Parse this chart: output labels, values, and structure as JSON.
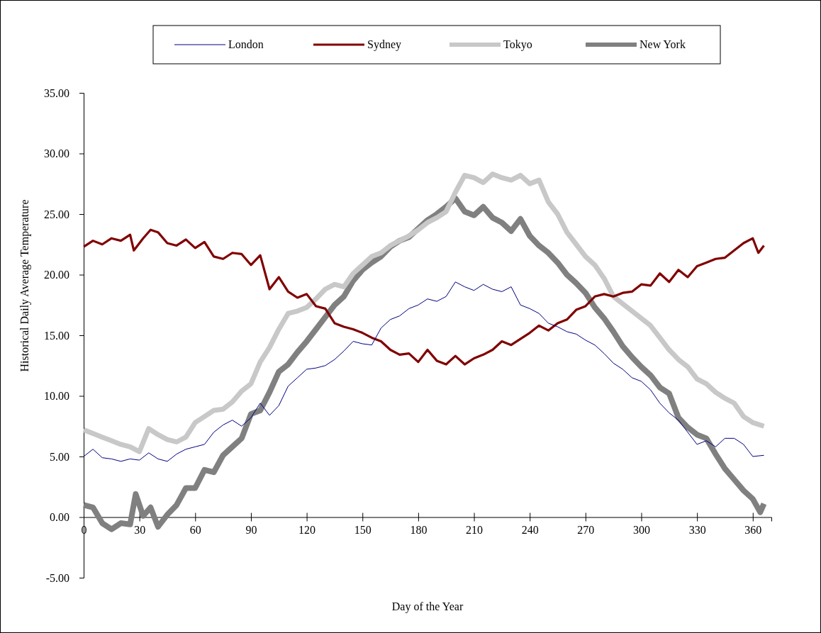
{
  "chart_data": {
    "type": "line",
    "xlabel": "Day of the Year",
    "ylabel": "Historical Daily Average Temperature",
    "xlim": [
      0,
      370
    ],
    "ylim": [
      -5,
      35
    ],
    "xticks": [
      0,
      30,
      60,
      90,
      120,
      150,
      180,
      210,
      240,
      270,
      300,
      330,
      360
    ],
    "yticks": [
      {
        "value": -5,
        "label": "-5.00"
      },
      {
        "value": 0,
        "label": "0.00"
      },
      {
        "value": 5,
        "label": "5.00"
      },
      {
        "value": 10,
        "label": "10.00"
      },
      {
        "value": 15,
        "label": "15.00"
      },
      {
        "value": 20,
        "label": "20.00"
      },
      {
        "value": 25,
        "label": "25.00"
      },
      {
        "value": 30,
        "label": "30.00"
      },
      {
        "value": 35,
        "label": "35.00"
      }
    ],
    "grid": false,
    "legend": "top",
    "marker": "none",
    "line_style": "solid",
    "series": [
      {
        "name": "London",
        "color": "#000080",
        "x": [
          0,
          5,
          10,
          15,
          20,
          25,
          30,
          35,
          40,
          45,
          50,
          55,
          60,
          65,
          70,
          75,
          80,
          85,
          90,
          95,
          100,
          105,
          110,
          115,
          120,
          125,
          130,
          135,
          140,
          145,
          150,
          155,
          160,
          165,
          170,
          175,
          180,
          185,
          190,
          195,
          200,
          205,
          210,
          215,
          220,
          225,
          230,
          235,
          240,
          245,
          250,
          255,
          260,
          265,
          270,
          275,
          280,
          285,
          290,
          295,
          300,
          305,
          310,
          315,
          320,
          325,
          330,
          335,
          340,
          345,
          350,
          355,
          360,
          366
        ],
        "values": [
          5.0,
          5.6,
          4.9,
          4.8,
          4.6,
          4.8,
          4.7,
          5.3,
          4.8,
          4.6,
          5.2,
          5.6,
          5.8,
          6.0,
          7.0,
          7.6,
          8.0,
          7.5,
          8.2,
          9.4,
          8.4,
          9.2,
          10.8,
          11.5,
          12.2,
          12.3,
          12.5,
          13.0,
          13.7,
          14.5,
          14.3,
          14.2,
          15.6,
          16.3,
          16.6,
          17.2,
          17.5,
          18.0,
          17.8,
          18.2,
          19.4,
          19.0,
          18.7,
          19.2,
          18.8,
          18.6,
          19.0,
          17.5,
          17.2,
          16.8,
          16.0,
          15.7,
          15.3,
          15.1,
          14.6,
          14.2,
          13.5,
          12.7,
          12.2,
          11.5,
          11.2,
          10.5,
          9.4,
          8.6,
          8.0,
          7.0,
          6.0,
          6.3,
          5.8,
          6.5,
          6.5,
          6.0,
          5.0,
          5.1
        ]
      },
      {
        "name": "Sydney",
        "color": "#800000",
        "x": [
          0,
          5,
          10,
          15,
          20,
          25,
          27,
          32,
          36,
          40,
          45,
          50,
          55,
          60,
          65,
          70,
          75,
          80,
          85,
          90,
          95,
          100,
          105,
          110,
          115,
          120,
          125,
          130,
          135,
          140,
          145,
          150,
          155,
          160,
          165,
          170,
          175,
          180,
          185,
          190,
          195,
          200,
          205,
          210,
          215,
          220,
          225,
          230,
          235,
          240,
          245,
          250,
          255,
          260,
          265,
          270,
          275,
          280,
          285,
          290,
          295,
          300,
          305,
          310,
          315,
          320,
          325,
          330,
          335,
          340,
          345,
          350,
          355,
          360,
          363,
          366
        ],
        "values": [
          22.3,
          22.8,
          22.5,
          23.0,
          22.8,
          23.3,
          22.0,
          23.0,
          23.7,
          23.5,
          22.6,
          22.4,
          22.9,
          22.2,
          22.7,
          21.5,
          21.3,
          21.8,
          21.7,
          20.8,
          21.6,
          18.8,
          19.8,
          18.6,
          18.1,
          18.4,
          17.4,
          17.2,
          16.0,
          15.7,
          15.5,
          15.2,
          14.8,
          14.5,
          13.8,
          13.4,
          13.5,
          12.8,
          13.8,
          12.9,
          12.6,
          13.3,
          12.6,
          13.1,
          13.4,
          13.8,
          14.5,
          14.2,
          14.7,
          15.2,
          15.8,
          15.4,
          16.0,
          16.3,
          17.1,
          17.4,
          18.2,
          18.4,
          18.2,
          18.5,
          18.6,
          19.2,
          19.1,
          20.1,
          19.4,
          20.4,
          19.8,
          20.7,
          21.0,
          21.3,
          21.4,
          22.0,
          22.6,
          23.0,
          21.8,
          22.4
        ]
      },
      {
        "name": "Tokyo",
        "color": "#c8c8c8",
        "x": [
          0,
          5,
          10,
          15,
          20,
          25,
          30,
          35,
          40,
          45,
          50,
          55,
          60,
          65,
          70,
          75,
          80,
          85,
          90,
          95,
          100,
          105,
          110,
          115,
          120,
          125,
          130,
          135,
          140,
          145,
          150,
          155,
          160,
          165,
          170,
          175,
          180,
          185,
          190,
          195,
          200,
          205,
          210,
          215,
          220,
          225,
          230,
          235,
          240,
          245,
          250,
          255,
          260,
          265,
          270,
          275,
          280,
          285,
          290,
          295,
          300,
          305,
          310,
          315,
          320,
          325,
          330,
          335,
          340,
          345,
          350,
          355,
          360,
          366
        ],
        "values": [
          7.2,
          6.9,
          6.6,
          6.3,
          6.0,
          5.8,
          5.4,
          7.3,
          6.8,
          6.4,
          6.2,
          6.6,
          7.8,
          8.3,
          8.8,
          8.9,
          9.5,
          10.4,
          11.0,
          12.8,
          14.0,
          15.5,
          16.8,
          17.0,
          17.3,
          18.0,
          18.8,
          19.2,
          19.0,
          20.1,
          20.8,
          21.5,
          21.8,
          22.4,
          22.8,
          23.2,
          23.7,
          24.3,
          24.7,
          25.2,
          26.8,
          28.2,
          28.0,
          27.6,
          28.3,
          28.0,
          27.8,
          28.2,
          27.5,
          27.8,
          26.0,
          25.0,
          23.5,
          22.5,
          21.5,
          20.8,
          19.7,
          18.2,
          17.6,
          17.0,
          16.4,
          15.8,
          14.8,
          13.8,
          13.0,
          12.4,
          11.4,
          11.0,
          10.3,
          9.8,
          9.4,
          8.3,
          7.8,
          7.5
        ]
      },
      {
        "name": "New York",
        "color": "#808080",
        "x": [
          0,
          5,
          10,
          15,
          20,
          25,
          28,
          32,
          36,
          40,
          45,
          50,
          55,
          60,
          65,
          70,
          75,
          80,
          85,
          90,
          95,
          100,
          105,
          110,
          115,
          120,
          125,
          130,
          135,
          140,
          145,
          150,
          155,
          160,
          165,
          170,
          175,
          180,
          185,
          190,
          195,
          200,
          205,
          210,
          215,
          220,
          225,
          230,
          235,
          240,
          245,
          250,
          255,
          260,
          265,
          270,
          275,
          280,
          285,
          290,
          295,
          300,
          305,
          310,
          315,
          320,
          325,
          330,
          335,
          340,
          345,
          350,
          355,
          360,
          364,
          366
        ],
        "values": [
          1.0,
          0.8,
          -0.5,
          -1.0,
          -0.5,
          -0.6,
          1.9,
          0.1,
          0.8,
          -0.8,
          0.2,
          1.0,
          2.4,
          2.4,
          3.9,
          3.7,
          5.1,
          5.8,
          6.5,
          8.5,
          8.8,
          10.3,
          12.0,
          12.6,
          13.6,
          14.5,
          15.5,
          16.5,
          17.5,
          18.2,
          19.5,
          20.4,
          21.0,
          21.5,
          22.3,
          22.8,
          23.1,
          23.8,
          24.5,
          25.0,
          25.6,
          26.3,
          25.2,
          24.9,
          25.6,
          24.7,
          24.3,
          23.6,
          24.6,
          23.2,
          22.4,
          21.8,
          21.0,
          20.0,
          19.3,
          18.5,
          17.3,
          16.4,
          15.3,
          14.1,
          13.2,
          12.4,
          11.7,
          10.7,
          10.2,
          8.2,
          7.4,
          6.8,
          6.5,
          5.2,
          4.0,
          3.1,
          2.2,
          1.5,
          0.4,
          1.1
        ]
      }
    ]
  }
}
